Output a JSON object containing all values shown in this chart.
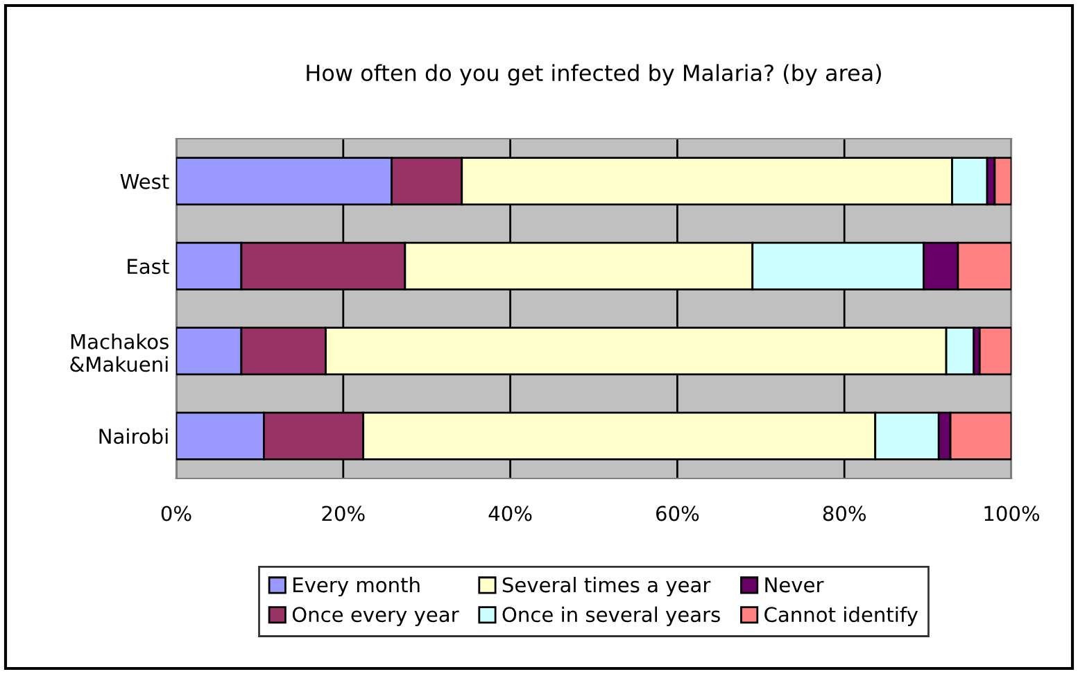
{
  "chart_data": {
    "type": "bar",
    "orientation": "horizontal",
    "stacked": true,
    "title": "How often do you get infected by Malaria? (by area)",
    "categories": [
      "West",
      "East",
      "Machakos\n&Makueni",
      "Nairobi"
    ],
    "series": [
      {
        "name": "Every month",
        "color": "#9999ff",
        "values": [
          25.8,
          7.8,
          7.8,
          10.5
        ]
      },
      {
        "name": "Once every year",
        "color": "#993366",
        "values": [
          8.4,
          19.6,
          10.1,
          11.9
        ]
      },
      {
        "name": "Several times a year",
        "color": "#ffffcc",
        "values": [
          58.7,
          41.6,
          74.3,
          61.3
        ]
      },
      {
        "name": "Once in several years",
        "color": "#ccffff",
        "values": [
          4.2,
          20.5,
          3.3,
          7.6
        ]
      },
      {
        "name": "Never",
        "color": "#660066",
        "values": [
          0.9,
          4.1,
          0.7,
          1.4
        ]
      },
      {
        "name": "Cannot identify",
        "color": "#ff8080",
        "values": [
          2.0,
          6.4,
          3.8,
          7.3
        ]
      }
    ],
    "xlim": [
      0,
      100
    ],
    "xticks": [
      {
        "value": 0,
        "label": "0%"
      },
      {
        "value": 20,
        "label": "20%"
      },
      {
        "value": 40,
        "label": "40%"
      },
      {
        "value": 60,
        "label": "60%"
      },
      {
        "value": 80,
        "label": "80%"
      },
      {
        "value": 100,
        "label": "100%"
      }
    ],
    "grid": "x",
    "legend": "bottom"
  }
}
